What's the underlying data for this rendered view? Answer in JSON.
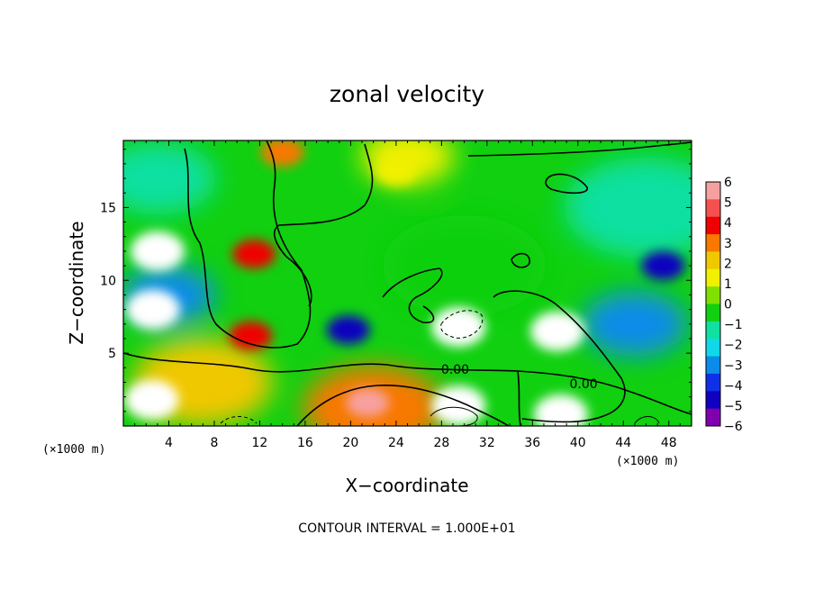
{
  "chart_data": {
    "type": "heatmap",
    "title": "zonal velocity",
    "xlabel": "X−coordinate",
    "ylabel": "Z−coordinate",
    "x_unit_left": "(×1000 m)",
    "x_unit_right": "(×1000 m)",
    "xlim": [
      0,
      50
    ],
    "ylim": [
      0,
      19.6
    ],
    "x_ticks": [
      4,
      8,
      12,
      16,
      20,
      24,
      28,
      32,
      36,
      40,
      44,
      48
    ],
    "y_ticks": [
      5,
      10,
      15
    ],
    "x_tick_labels": [
      "4",
      "8",
      "12",
      "16",
      "20",
      "24",
      "28",
      "32",
      "36",
      "40",
      "44",
      "48"
    ],
    "y_tick_labels": [
      "5",
      "10",
      "15"
    ],
    "colorbar": {
      "levels": [
        6,
        5,
        4,
        3,
        2,
        1,
        0,
        -1,
        -2,
        -3,
        -4,
        -5,
        -6
      ],
      "labels": [
        "6",
        "5",
        "4",
        "3",
        "2",
        "1",
        "0",
        "−1",
        "−2",
        "−3",
        "−4",
        "−5",
        "−6"
      ],
      "colors": [
        "#f7a0a0",
        "#f55050",
        "#f00000",
        "#f87800",
        "#f0c800",
        "#f0f000",
        "#80e000",
        "#10d010",
        "#10e0a0",
        "#10d8e8",
        "#0a8ce8",
        "#1030e8",
        "#1000c0",
        "#8000b0"
      ]
    },
    "contour_labels": [
      {
        "text": "0.00",
        "x": 29.2,
        "z": 3.6
      },
      {
        "text": "0.00",
        "x": 40.5,
        "z": 2.6
      }
    ],
    "features": [
      {
        "x": 3.0,
        "z": 12.0,
        "v": 7
      },
      {
        "x": 2.6,
        "z": 8.0,
        "v": 7
      },
      {
        "x": 2.5,
        "z": 1.8,
        "v": 7
      },
      {
        "x": 11.5,
        "z": 11.8,
        "v": 4
      },
      {
        "x": 11.2,
        "z": 6.2,
        "v": 4
      },
      {
        "x": 29.5,
        "z": 6.8,
        "v": 7
      },
      {
        "x": 38.2,
        "z": 6.5,
        "v": 7
      },
      {
        "x": 38.5,
        "z": 0.8,
        "v": 7
      },
      {
        "x": 29.5,
        "z": 1.4,
        "v": 7
      },
      {
        "x": 21.5,
        "z": 1.6,
        "v": 6
      },
      {
        "x": 47.5,
        "z": 11.0,
        "v": -6
      },
      {
        "x": 19.8,
        "z": 6.6,
        "v": -6
      },
      {
        "x": 24.0,
        "z": 17.5,
        "v": 1
      },
      {
        "x": 14.0,
        "z": 18.8,
        "v": 3
      }
    ],
    "contour_interval_text": "CONTOUR INTERVAL = 1.000E+01"
  }
}
